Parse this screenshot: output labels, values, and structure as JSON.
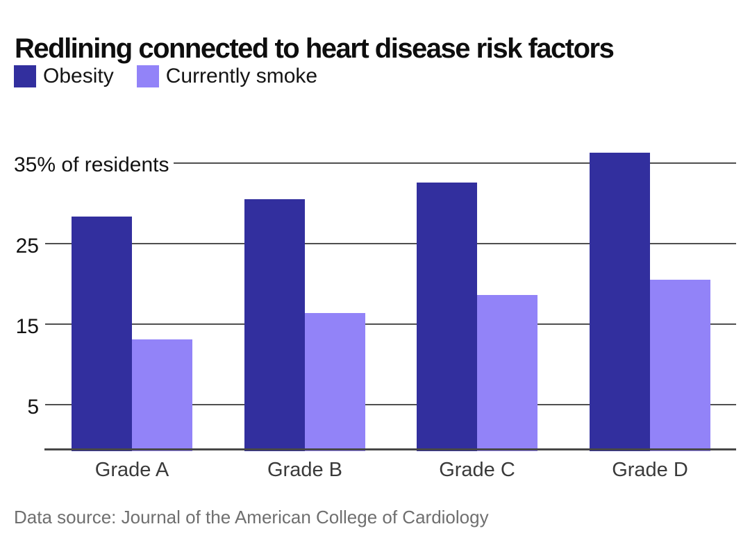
{
  "header": {
    "title": "Redlining connected to heart disease risk factors"
  },
  "legend": {
    "items": [
      {
        "label": "Obesity",
        "color": "#322F9E",
        "icon": "legend-swatch"
      },
      {
        "label": "Currently smoke",
        "color": "#9283F8",
        "icon": "legend-swatch"
      }
    ]
  },
  "chart_data": {
    "type": "bar",
    "categories": [
      "Grade A",
      "Grade B",
      "Grade C",
      "Grade D"
    ],
    "series": [
      {
        "name": "Obesity",
        "color": "#322F9E",
        "values": [
          28.4,
          30.5,
          32.6,
          36.3
        ]
      },
      {
        "name": "Currently smoke",
        "color": "#9283F8",
        "values": [
          13.1,
          16.4,
          18.6,
          20.5
        ]
      }
    ],
    "title": "Redlining connected to heart disease risk factors",
    "xlabel": "",
    "ylabel": "% of residents",
    "y_axis": {
      "ticks": [
        35,
        25,
        15,
        5
      ],
      "tick_labels": [
        "35% of residents",
        "25",
        "15",
        "5"
      ],
      "range": [
        0,
        36.5
      ],
      "grid": true
    },
    "legend_position": "top-left"
  },
  "footer": {
    "source": "Data source: Journal of the American College of Cardiology"
  },
  "colors": {
    "background": "#ffffff",
    "grid": "#4f4f4f",
    "axis": "#474747",
    "title_text": "#0e0e0e",
    "tick_text": "#121212",
    "category_text": "#3a3a3a",
    "footer_text": "#6f6f6f"
  }
}
